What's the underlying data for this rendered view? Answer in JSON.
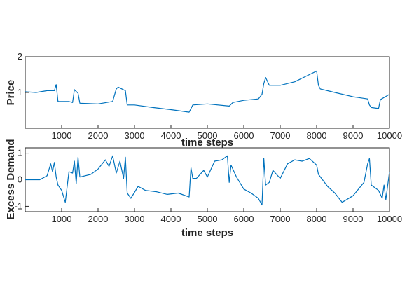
{
  "chart_data": [
    {
      "type": "line",
      "xlabel": "time steps",
      "ylabel": "Price",
      "xlim": [
        0,
        10000
      ],
      "ylim": [
        0,
        2
      ],
      "xticks": [
        1000,
        2000,
        3000,
        4000,
        5000,
        6000,
        7000,
        8000,
        9000,
        10000
      ],
      "yticks": [
        1,
        2
      ],
      "grid": false,
      "series": [
        {
          "color": "#0072BD",
          "x": [
            0,
            300,
            600,
            800,
            850,
            900,
            1200,
            1300,
            1350,
            1450,
            1500,
            2000,
            2400,
            2500,
            2550,
            2750,
            2800,
            3000,
            3500,
            4000,
            4500,
            4600,
            5000,
            5600,
            5700,
            6000,
            6400,
            6500,
            6550,
            6600,
            6700,
            7000,
            7400,
            7800,
            8000,
            8050,
            8100,
            8500,
            9000,
            9400,
            9450,
            9500,
            9700,
            9750,
            10000
          ],
          "y": [
            1.02,
            1.0,
            1.05,
            1.05,
            1.22,
            0.75,
            0.75,
            0.72,
            1.08,
            0.98,
            0.7,
            0.68,
            0.75,
            1.1,
            1.15,
            1.05,
            0.65,
            0.65,
            0.58,
            0.52,
            0.45,
            0.65,
            0.68,
            0.62,
            0.72,
            0.78,
            0.82,
            0.95,
            1.25,
            1.42,
            1.2,
            1.2,
            1.3,
            1.5,
            1.6,
            1.2,
            1.1,
            1.0,
            0.88,
            0.82,
            0.65,
            0.58,
            0.55,
            0.8,
            0.95
          ]
        }
      ]
    },
    {
      "type": "line",
      "xlabel": "time steps",
      "ylabel": "Excess Demand",
      "xlim": [
        0,
        10000
      ],
      "ylim": [
        -1.2,
        1.2
      ],
      "xticks": [
        1000,
        2000,
        3000,
        4000,
        5000,
        6000,
        7000,
        8000,
        9000,
        10000
      ],
      "yticks": [
        -1,
        0,
        1
      ],
      "grid": false,
      "series": [
        {
          "color": "#0072BD",
          "x": [
            0,
            400,
            600,
            700,
            750,
            800,
            850,
            900,
            1000,
            1100,
            1200,
            1300,
            1350,
            1400,
            1450,
            1500,
            1800,
            2000,
            2200,
            2300,
            2400,
            2500,
            2600,
            2700,
            2750,
            2800,
            2900,
            3100,
            3300,
            3600,
            3900,
            4200,
            4500,
            4550,
            4600,
            4700,
            4900,
            5000,
            5200,
            5400,
            5550,
            5600,
            5650,
            5800,
            6000,
            6200,
            6400,
            6500,
            6550,
            6600,
            6700,
            6800,
            7000,
            7200,
            7400,
            7600,
            7800,
            8000,
            8050,
            8300,
            8500,
            8700,
            9000,
            9300,
            9400,
            9450,
            9500,
            9700,
            9800,
            9850,
            9900,
            10000
          ],
          "y": [
            0,
            0,
            0.15,
            0.6,
            0.3,
            0.65,
            0.1,
            -0.2,
            -0.4,
            -0.85,
            0.3,
            0.25,
            0.7,
            -0.15,
            0.85,
            0.1,
            0.2,
            0.4,
            0.75,
            0.5,
            0.9,
            0.25,
            0.7,
            0.05,
            0.85,
            -0.5,
            -0.7,
            -0.25,
            -0.4,
            -0.45,
            -0.55,
            -0.5,
            -0.65,
            0.45,
            0.05,
            0.05,
            0.35,
            0.1,
            0.7,
            0.75,
            0.9,
            -0.1,
            0.55,
            0.1,
            -0.35,
            -0.5,
            -0.7,
            -0.95,
            0.8,
            -0.2,
            -0.1,
            0.35,
            0.05,
            0.6,
            0.75,
            0.7,
            0.8,
            0.55,
            0.2,
            -0.25,
            -0.5,
            -0.85,
            -0.6,
            -0.1,
            0.6,
            0.8,
            -0.2,
            -0.4,
            -0.7,
            -0.2,
            -0.75,
            0.3
          ]
        }
      ]
    }
  ]
}
